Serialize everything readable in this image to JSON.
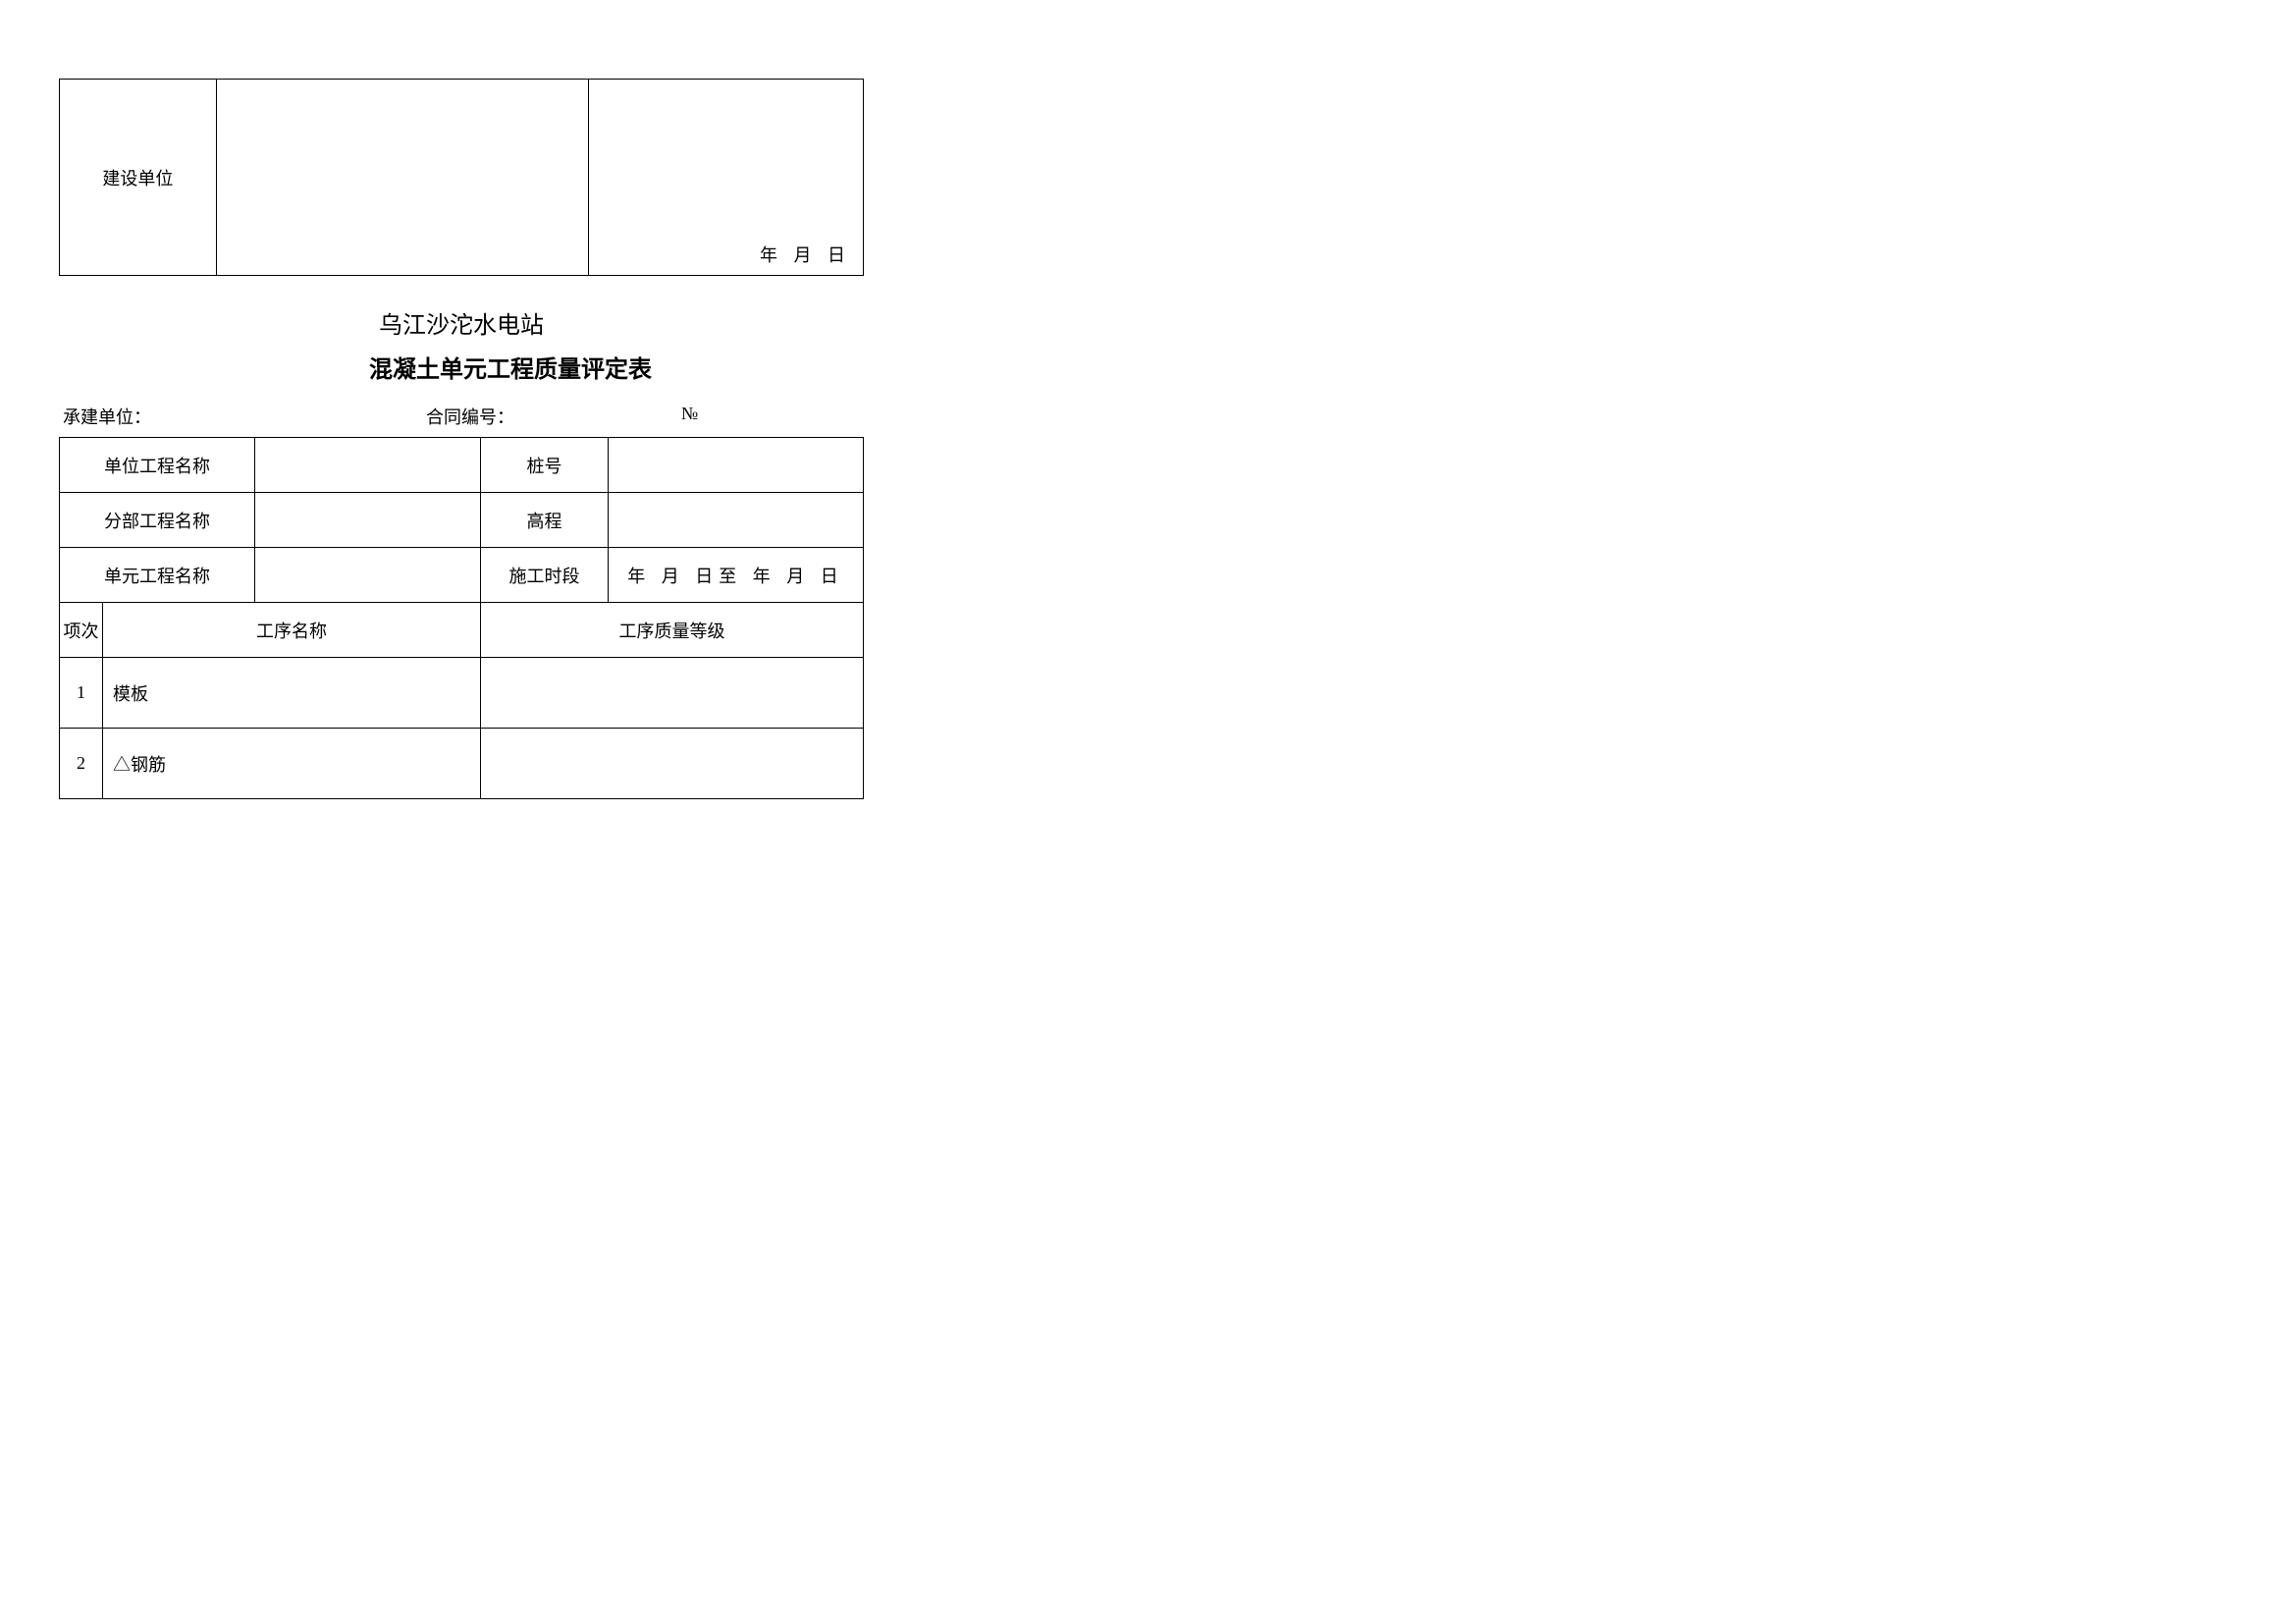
{
  "top_table": {
    "label": "建设单位",
    "date_text": "年  月  日"
  },
  "titles": {
    "line1": "乌江沙沱水电站",
    "line2": "混凝土单元工程质量评定表"
  },
  "info_line": {
    "seg1": "承建单位：",
    "seg2": "合同编号：",
    "seg3": "№"
  },
  "header_rows": [
    {
      "a": "单位工程名称",
      "c": "桩号",
      "d": ""
    },
    {
      "a": "分部工程名称",
      "c": "高程",
      "d": ""
    },
    {
      "a": "单元工程名称",
      "c": "施工时段",
      "d": "年  月  日至  年  月  日"
    }
  ],
  "proc_header": {
    "idx": "项次",
    "name": "工序名称",
    "grade": "工序质量等级"
  },
  "proc_rows": [
    {
      "idx": "1",
      "name": "模板",
      "grade": ""
    },
    {
      "idx": "2",
      "name": "△钢筋",
      "grade": ""
    }
  ],
  "style": {
    "font_size_body": 18,
    "font_size_title": 24,
    "border_color": "#000000",
    "background": "#ffffff"
  }
}
